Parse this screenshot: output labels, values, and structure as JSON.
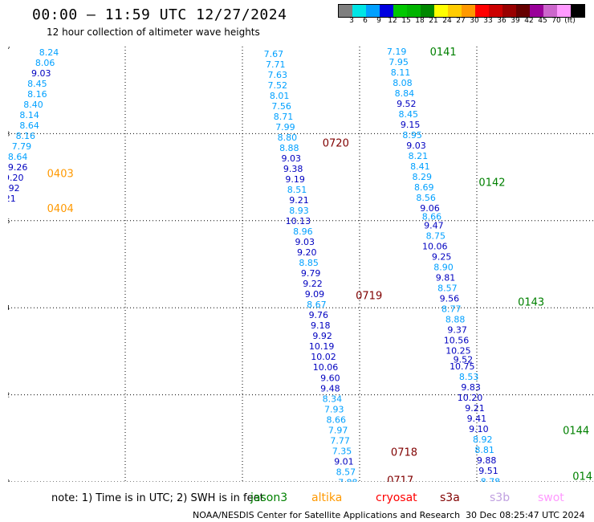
{
  "header": {
    "title": "00:00 – 11:59 UTC 12/27/2024",
    "subtitle": "12 hour collection of altimeter wave heights"
  },
  "colorbar": {
    "colors": [
      "#7f7f7f",
      "#00e5e5",
      "#00a0ff",
      "#0000e0",
      "#00c800",
      "#00b400",
      "#008800",
      "#ffff00",
      "#ffcc00",
      "#ff9900",
      "#ff0000",
      "#cc0000",
      "#990000",
      "#660000",
      "#990099",
      "#cc66cc",
      "#ff99ff",
      "#000000"
    ],
    "labels": [
      "3",
      "6",
      "9",
      "12",
      "15",
      "18",
      "21",
      "24",
      "27",
      "30",
      "33",
      "36",
      "39",
      "42",
      "45",
      "70",
      "(ft)"
    ]
  },
  "map": {
    "lon_ticks": [
      "-150",
      "-147",
      "-144",
      "-141",
      "-138",
      "-135"
    ],
    "lat_ticks": [
      "10",
      "12",
      "14",
      "16",
      "18",
      "20"
    ],
    "lon_range": [
      -150,
      -135
    ],
    "lat_range": [
      10,
      20
    ]
  },
  "tracks": [
    {
      "labels": [
        {
          "text": "0403",
          "lon": -149.0,
          "lat": 17.0,
          "color": "#ff9900"
        },
        {
          "text": "0404",
          "lon": -149.0,
          "lat": 16.2,
          "color": "#ff9900"
        }
      ],
      "points": [
        {
          "v": "8.24",
          "lon": -148.7,
          "lat": 19.8
        },
        {
          "v": "8.06",
          "lon": -148.8,
          "lat": 19.56
        },
        {
          "v": "9.03",
          "lon": -148.9,
          "lat": 19.32
        },
        {
          "v": "8.45",
          "lon": -149.0,
          "lat": 19.08
        },
        {
          "v": "8.16",
          "lon": -149.0,
          "lat": 18.84
        },
        {
          "v": "8.40",
          "lon": -149.1,
          "lat": 18.6
        },
        {
          "v": "8.14",
          "lon": -149.2,
          "lat": 18.36
        },
        {
          "v": "8.64",
          "lon": -149.2,
          "lat": 18.12
        },
        {
          "v": "8.16",
          "lon": -149.3,
          "lat": 17.88
        },
        {
          "v": "7.79",
          "lon": -149.4,
          "lat": 17.64
        },
        {
          "v": "8.64",
          "lon": -149.5,
          "lat": 17.4
        },
        {
          "v": "9.26",
          "lon": -149.5,
          "lat": 17.16
        },
        {
          "v": "9.20",
          "lon": -149.6,
          "lat": 16.92
        },
        {
          "v": "9.92",
          "lon": -149.7,
          "lat": 16.68
        },
        {
          "v": "10.21",
          "lon": -149.8,
          "lat": 16.44
        }
      ]
    },
    {
      "labels": [
        {
          "text": "0720",
          "lon": -141.95,
          "lat": 17.7,
          "color": "#800000"
        },
        {
          "text": "0719",
          "lon": -141.1,
          "lat": 14.2,
          "color": "#800000"
        },
        {
          "text": "0718",
          "lon": -140.2,
          "lat": 10.6,
          "color": "#800000"
        },
        {
          "text": "0717",
          "lon": -140.3,
          "lat": 9.95,
          "color": "#800000"
        }
      ],
      "points": [
        {
          "v": "7.52",
          "lon": -143.0,
          "lat": 20.0
        },
        {
          "v": "7.67",
          "lon": -142.95,
          "lat": 19.76
        },
        {
          "v": "7.71",
          "lon": -142.9,
          "lat": 19.52
        },
        {
          "v": "7.63",
          "lon": -142.85,
          "lat": 19.28
        },
        {
          "v": "7.52",
          "lon": -142.85,
          "lat": 19.04
        },
        {
          "v": "8.01",
          "lon": -142.8,
          "lat": 18.8
        },
        {
          "v": "7.56",
          "lon": -142.75,
          "lat": 18.56
        },
        {
          "v": "8.71",
          "lon": -142.7,
          "lat": 18.32
        },
        {
          "v": "7.99",
          "lon": -142.65,
          "lat": 18.08
        },
        {
          "v": "8.80",
          "lon": -142.6,
          "lat": 17.84
        },
        {
          "v": "8.88",
          "lon": -142.55,
          "lat": 17.6
        },
        {
          "v": "9.03",
          "lon": -142.5,
          "lat": 17.36
        },
        {
          "v": "9.38",
          "lon": -142.45,
          "lat": 17.12
        },
        {
          "v": "9.19",
          "lon": -142.4,
          "lat": 16.88
        },
        {
          "v": "8.51",
          "lon": -142.35,
          "lat": 16.64
        },
        {
          "v": "9.21",
          "lon": -142.3,
          "lat": 16.4
        },
        {
          "v": "8.93",
          "lon": -142.3,
          "lat": 16.16
        },
        {
          "v": "10.13",
          "lon": -142.25,
          "lat": 15.92
        },
        {
          "v": "8.96",
          "lon": -142.2,
          "lat": 15.68
        },
        {
          "v": "9.03",
          "lon": -142.15,
          "lat": 15.44
        },
        {
          "v": "9.20",
          "lon": -142.1,
          "lat": 15.2
        },
        {
          "v": "8.85",
          "lon": -142.05,
          "lat": 14.96
        },
        {
          "v": "9.79",
          "lon": -142.0,
          "lat": 14.72
        },
        {
          "v": "9.22",
          "lon": -141.95,
          "lat": 14.48
        },
        {
          "v": "9.09",
          "lon": -141.9,
          "lat": 14.24
        },
        {
          "v": "8.67",
          "lon": -141.85,
          "lat": 14.0
        },
        {
          "v": "9.76",
          "lon": -141.8,
          "lat": 13.76
        },
        {
          "v": "9.18",
          "lon": -141.75,
          "lat": 13.52
        },
        {
          "v": "9.92",
          "lon": -141.7,
          "lat": 13.28
        },
        {
          "v": "10.19",
          "lon": -141.65,
          "lat": 13.04
        },
        {
          "v": "10.02",
          "lon": -141.6,
          "lat": 12.8
        },
        {
          "v": "10.06",
          "lon": -141.55,
          "lat": 12.56
        },
        {
          "v": "9.60",
          "lon": -141.5,
          "lat": 12.32
        },
        {
          "v": "9.48",
          "lon": -141.5,
          "lat": 12.08
        },
        {
          "v": "8.34",
          "lon": -141.45,
          "lat": 11.84
        },
        {
          "v": "7.93",
          "lon": -141.4,
          "lat": 11.6
        },
        {
          "v": "8.66",
          "lon": -141.35,
          "lat": 11.36
        },
        {
          "v": "7.97",
          "lon": -141.3,
          "lat": 11.12
        },
        {
          "v": "7.77",
          "lon": -141.25,
          "lat": 10.88
        },
        {
          "v": "7.35",
          "lon": -141.2,
          "lat": 10.64
        },
        {
          "v": "9.01",
          "lon": -141.15,
          "lat": 10.4
        },
        {
          "v": "8.57",
          "lon": -141.1,
          "lat": 10.16
        },
        {
          "v": "7.88",
          "lon": -141.05,
          "lat": 9.92
        }
      ]
    },
    {
      "labels": [
        {
          "text": "0141",
          "lon": -139.2,
          "lat": 19.8,
          "color": "#008000"
        },
        {
          "text": "0142",
          "lon": -137.95,
          "lat": 16.8,
          "color": "#008000"
        },
        {
          "text": "0143",
          "lon": -136.95,
          "lat": 14.05,
          "color": "#008000"
        },
        {
          "text": "0144",
          "lon": -135.8,
          "lat": 11.1,
          "color": "#008000"
        },
        {
          "text": "014",
          "lon": -135.55,
          "lat": 10.05,
          "color": "#008000"
        }
      ],
      "points": [
        {
          "v": "7.19",
          "lon": -139.8,
          "lat": 19.82
        },
        {
          "v": "7.95",
          "lon": -139.75,
          "lat": 19.58
        },
        {
          "v": "8.11",
          "lon": -139.7,
          "lat": 19.34
        },
        {
          "v": "8.08",
          "lon": -139.65,
          "lat": 19.1
        },
        {
          "v": "8.84",
          "lon": -139.6,
          "lat": 18.86
        },
        {
          "v": "9.52",
          "lon": -139.55,
          "lat": 18.62
        },
        {
          "v": "8.45",
          "lon": -139.5,
          "lat": 18.38
        },
        {
          "v": "9.15",
          "lon": -139.45,
          "lat": 18.14
        },
        {
          "v": "8.95",
          "lon": -139.4,
          "lat": 17.9
        },
        {
          "v": "9.03",
          "lon": -139.3,
          "lat": 17.66
        },
        {
          "v": "8.21",
          "lon": -139.25,
          "lat": 17.42
        },
        {
          "v": "8.41",
          "lon": -139.2,
          "lat": 17.18
        },
        {
          "v": "8.29",
          "lon": -139.15,
          "lat": 16.94
        },
        {
          "v": "8.69",
          "lon": -139.1,
          "lat": 16.7
        },
        {
          "v": "8.56",
          "lon": -139.05,
          "lat": 16.46
        },
        {
          "v": "9.06",
          "lon": -138.95,
          "lat": 16.22
        },
        {
          "v": "8.66",
          "lon": -138.9,
          "lat": 16.02
        },
        {
          "v": "9.47",
          "lon": -138.85,
          "lat": 15.82
        },
        {
          "v": "8.75",
          "lon": -138.8,
          "lat": 15.58
        },
        {
          "v": "10.06",
          "lon": -138.75,
          "lat": 15.34
        },
        {
          "v": "9.25",
          "lon": -138.65,
          "lat": 15.1
        },
        {
          "v": "8.90",
          "lon": -138.6,
          "lat": 14.86
        },
        {
          "v": "9.81",
          "lon": -138.55,
          "lat": 14.62
        },
        {
          "v": "8.57",
          "lon": -138.5,
          "lat": 14.38
        },
        {
          "v": "9.56",
          "lon": -138.45,
          "lat": 14.14
        },
        {
          "v": "8.77",
          "lon": -138.4,
          "lat": 13.9
        },
        {
          "v": "8.88",
          "lon": -138.3,
          "lat": 13.66
        },
        {
          "v": "9.37",
          "lon": -138.25,
          "lat": 13.42
        },
        {
          "v": "10.56",
          "lon": -138.2,
          "lat": 13.18
        },
        {
          "v": "10.25",
          "lon": -138.15,
          "lat": 12.94
        },
        {
          "v": "9.52",
          "lon": -138.1,
          "lat": 12.74
        },
        {
          "v": "10.75",
          "lon": -138.05,
          "lat": 12.58
        },
        {
          "v": "8.53",
          "lon": -137.95,
          "lat": 12.34
        },
        {
          "v": "9.83",
          "lon": -137.9,
          "lat": 12.1
        },
        {
          "v": "10.20",
          "lon": -137.85,
          "lat": 11.86
        },
        {
          "v": "9.21",
          "lon": -137.8,
          "lat": 11.62
        },
        {
          "v": "9.41",
          "lon": -137.75,
          "lat": 11.38
        },
        {
          "v": "9.10",
          "lon": -137.7,
          "lat": 11.14
        },
        {
          "v": "8.92",
          "lon": -137.6,
          "lat": 10.9
        },
        {
          "v": "8.81",
          "lon": -137.55,
          "lat": 10.66
        },
        {
          "v": "9.88",
          "lon": -137.5,
          "lat": 10.42
        },
        {
          "v": "9.51",
          "lon": -137.45,
          "lat": 10.18
        },
        {
          "v": "8.78",
          "lon": -137.4,
          "lat": 9.94
        }
      ]
    },
    {
      "labels": [],
      "points": []
    }
  ],
  "footer": {
    "note": "note:  1) Time is in UTC; 2) SWH is in feet",
    "credit": "NOAA/NESDIS Center for Satellite Applications and Research",
    "timestamp": "30 Dec 08:25:47 UTC 2024"
  },
  "satellites": [
    {
      "name": "jason3",
      "color": "#008000"
    },
    {
      "name": "altika",
      "color": "#ff9900"
    },
    {
      "name": "cryosat",
      "color": "#ff0000"
    },
    {
      "name": "s3a",
      "color": "#800000"
    },
    {
      "name": "s3b",
      "color": "#c0a0e0"
    },
    {
      "name": "swot",
      "color": "#ff99ff"
    }
  ],
  "value_colors": {
    "cyan": "#00a0ff",
    "blue": "#0000c0"
  }
}
